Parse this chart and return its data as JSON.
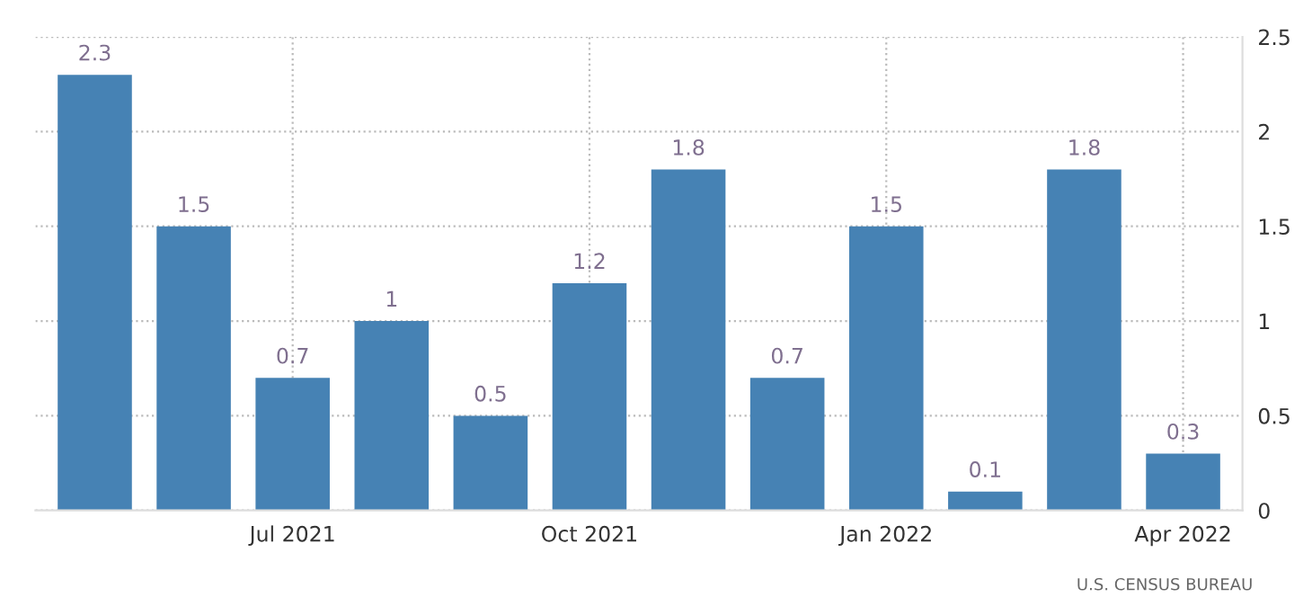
{
  "chart_data": {
    "type": "bar",
    "categories": [
      null,
      null,
      "Jul 2021",
      null,
      null,
      "Oct 2021",
      null,
      null,
      "Jan 2022",
      null,
      null,
      "Apr 2022"
    ],
    "values": [
      2.3,
      1.5,
      0.7,
      1,
      0.5,
      1.2,
      1.8,
      0.7,
      1.5,
      0.1,
      1.8,
      0.3
    ],
    "color": "#4682b4",
    "ylim": [
      0,
      2.5
    ],
    "yticks": [
      0,
      0.5,
      1,
      1.5,
      2,
      2.5
    ],
    "grid": true,
    "data_labels": true,
    "annotations": [
      "U.S. CENSUS BUREAU"
    ]
  }
}
